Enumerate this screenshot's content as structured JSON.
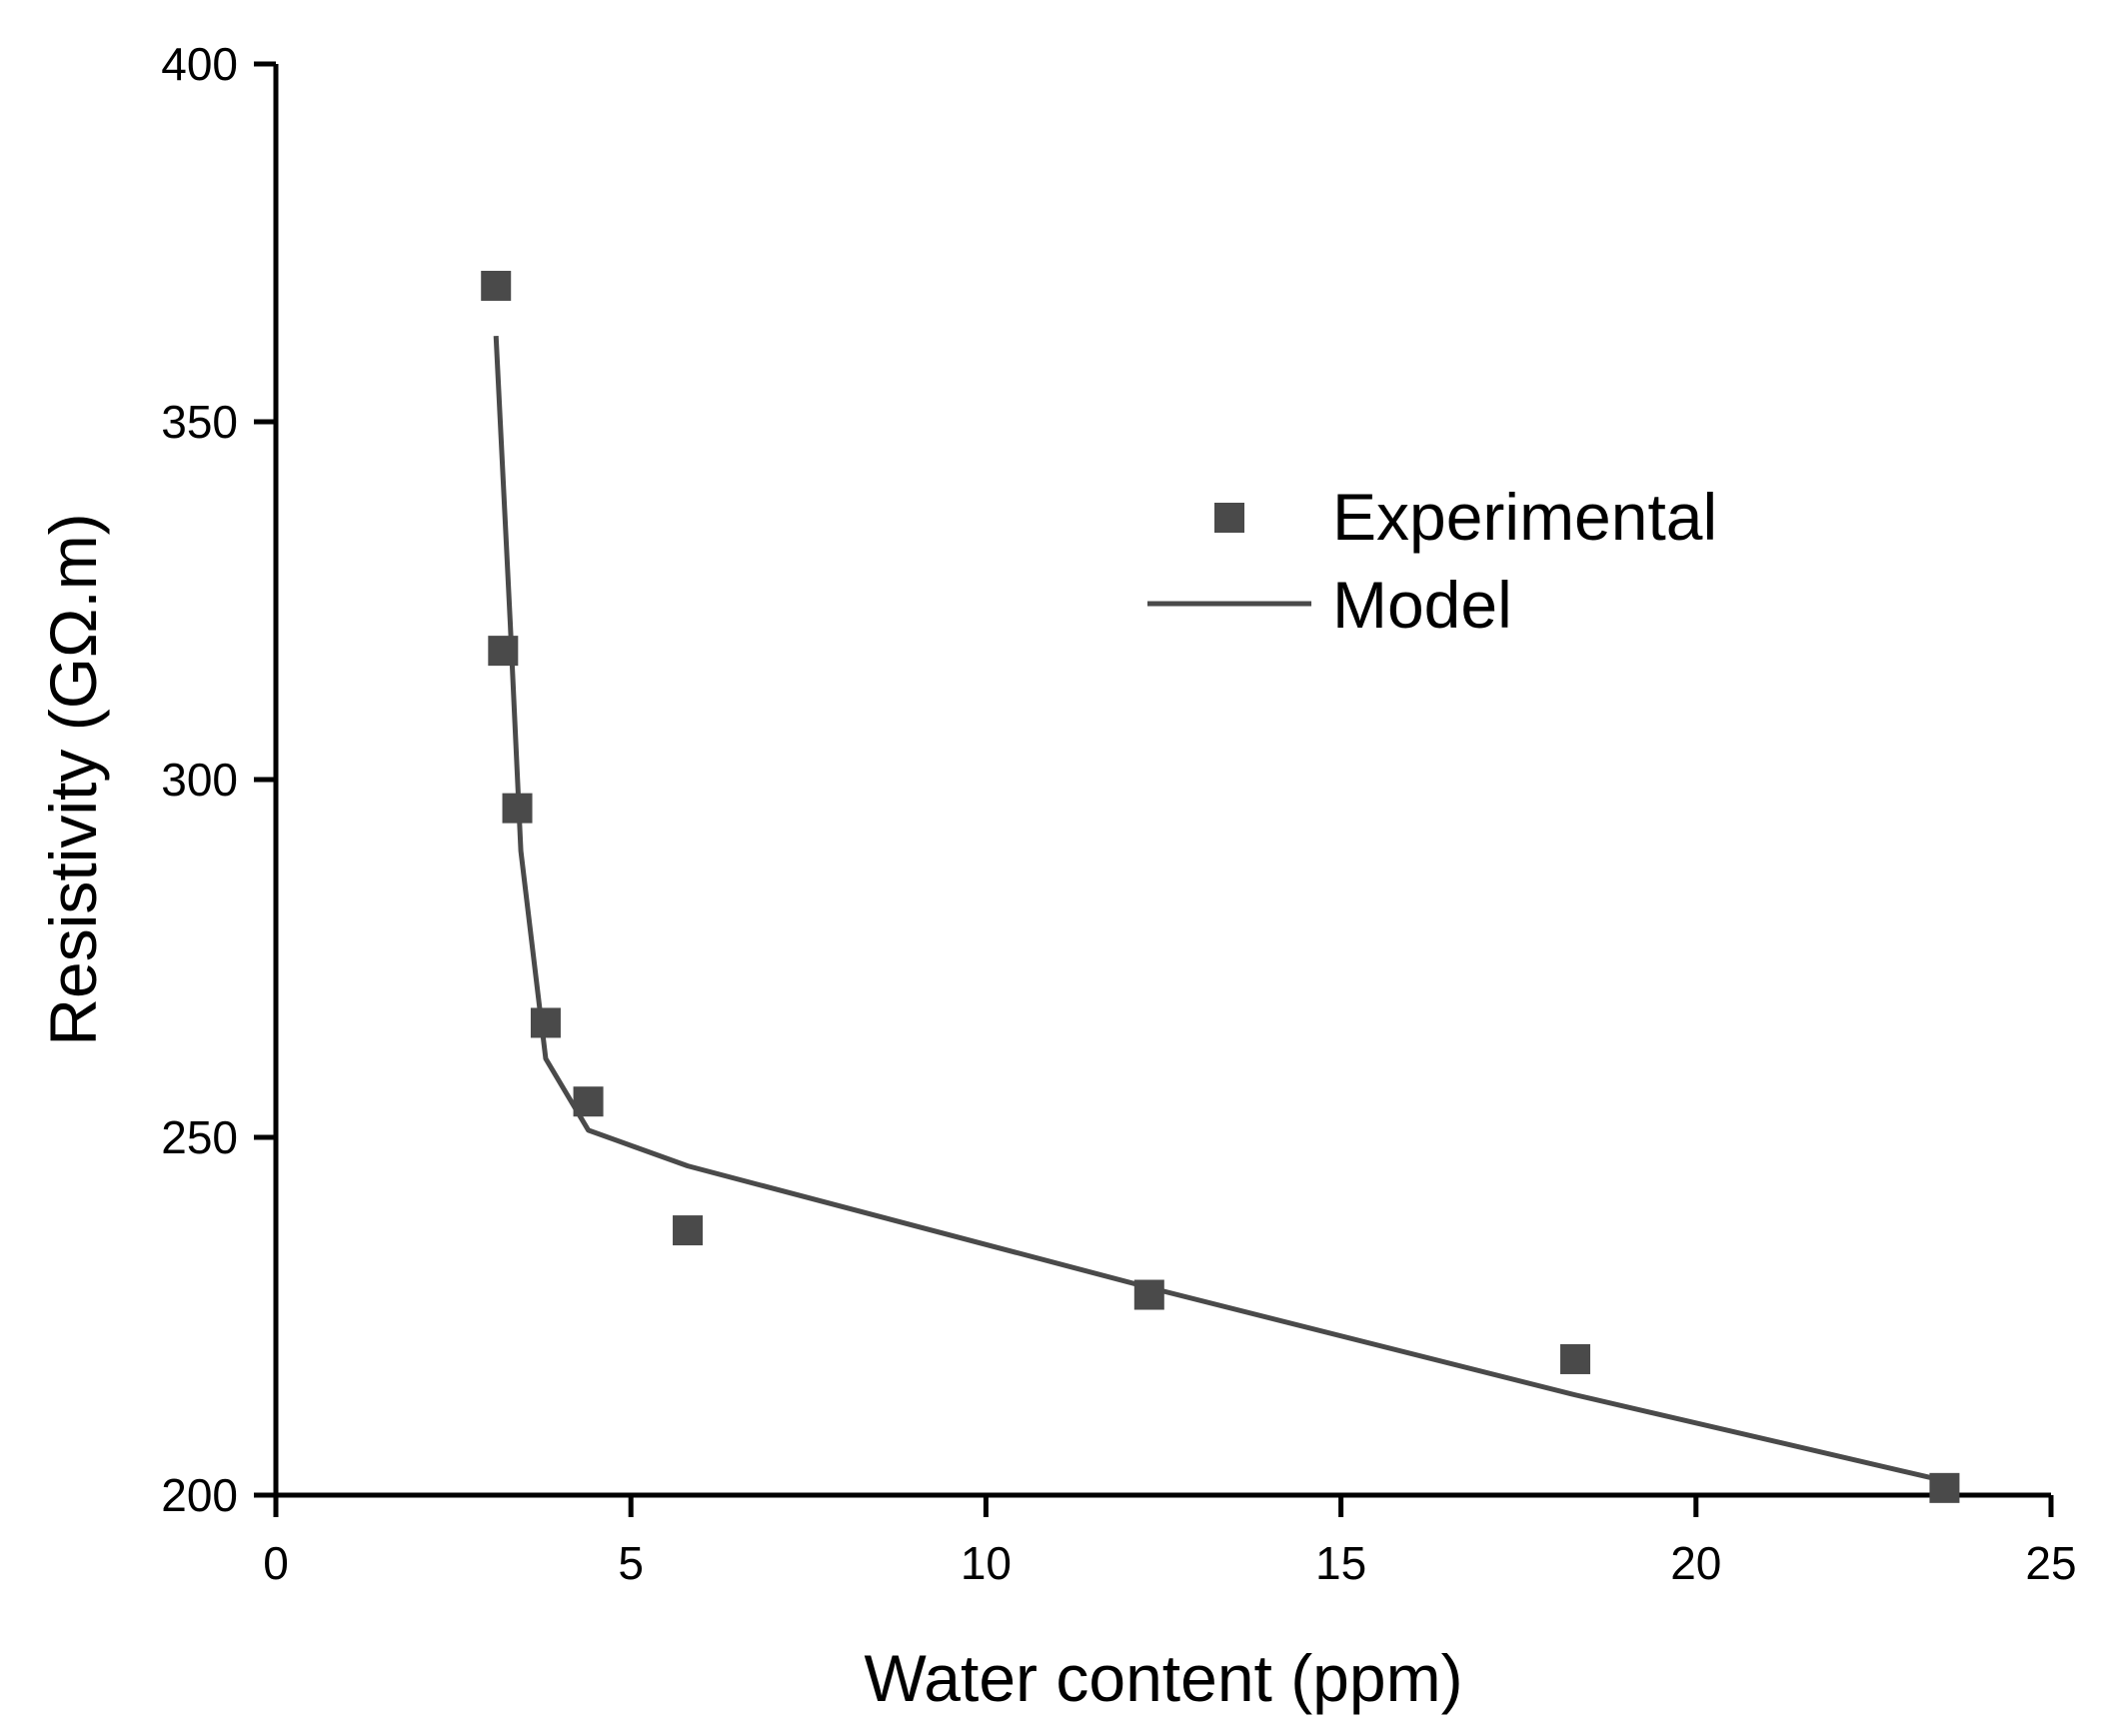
{
  "chart_data": {
    "type": "scatter",
    "title": "",
    "xlabel": "Water content (ppm)",
    "ylabel": "Resistivity (GΩ.m)",
    "xlim": [
      0,
      25
    ],
    "ylim": [
      200,
      400
    ],
    "xticks": [
      0,
      5,
      10,
      15,
      20,
      25
    ],
    "yticks": [
      200,
      250,
      300,
      350,
      400
    ],
    "grid": false,
    "legend_position": "upper-right",
    "series": [
      {
        "name": "Experimental",
        "kind": "scatter",
        "marker": "square",
        "color": "#4a4a4a",
        "x": [
          3.1,
          3.2,
          3.4,
          3.8,
          4.4,
          5.8,
          12.3,
          18.3,
          23.5
        ],
        "y": [
          369,
          318,
          296,
          266,
          255,
          237,
          228,
          219,
          201
        ]
      },
      {
        "name": "Model",
        "kind": "line",
        "color": "#4a4a4a",
        "x": [
          3.1,
          3.3,
          3.45,
          3.8,
          4.4,
          5.8,
          12.3,
          18.3,
          23.5
        ],
        "y": [
          362,
          322,
          290,
          261,
          251,
          246,
          229,
          214,
          202
        ]
      }
    ]
  },
  "colors": {
    "axis": "#000000",
    "series": "#4a4a4a"
  }
}
